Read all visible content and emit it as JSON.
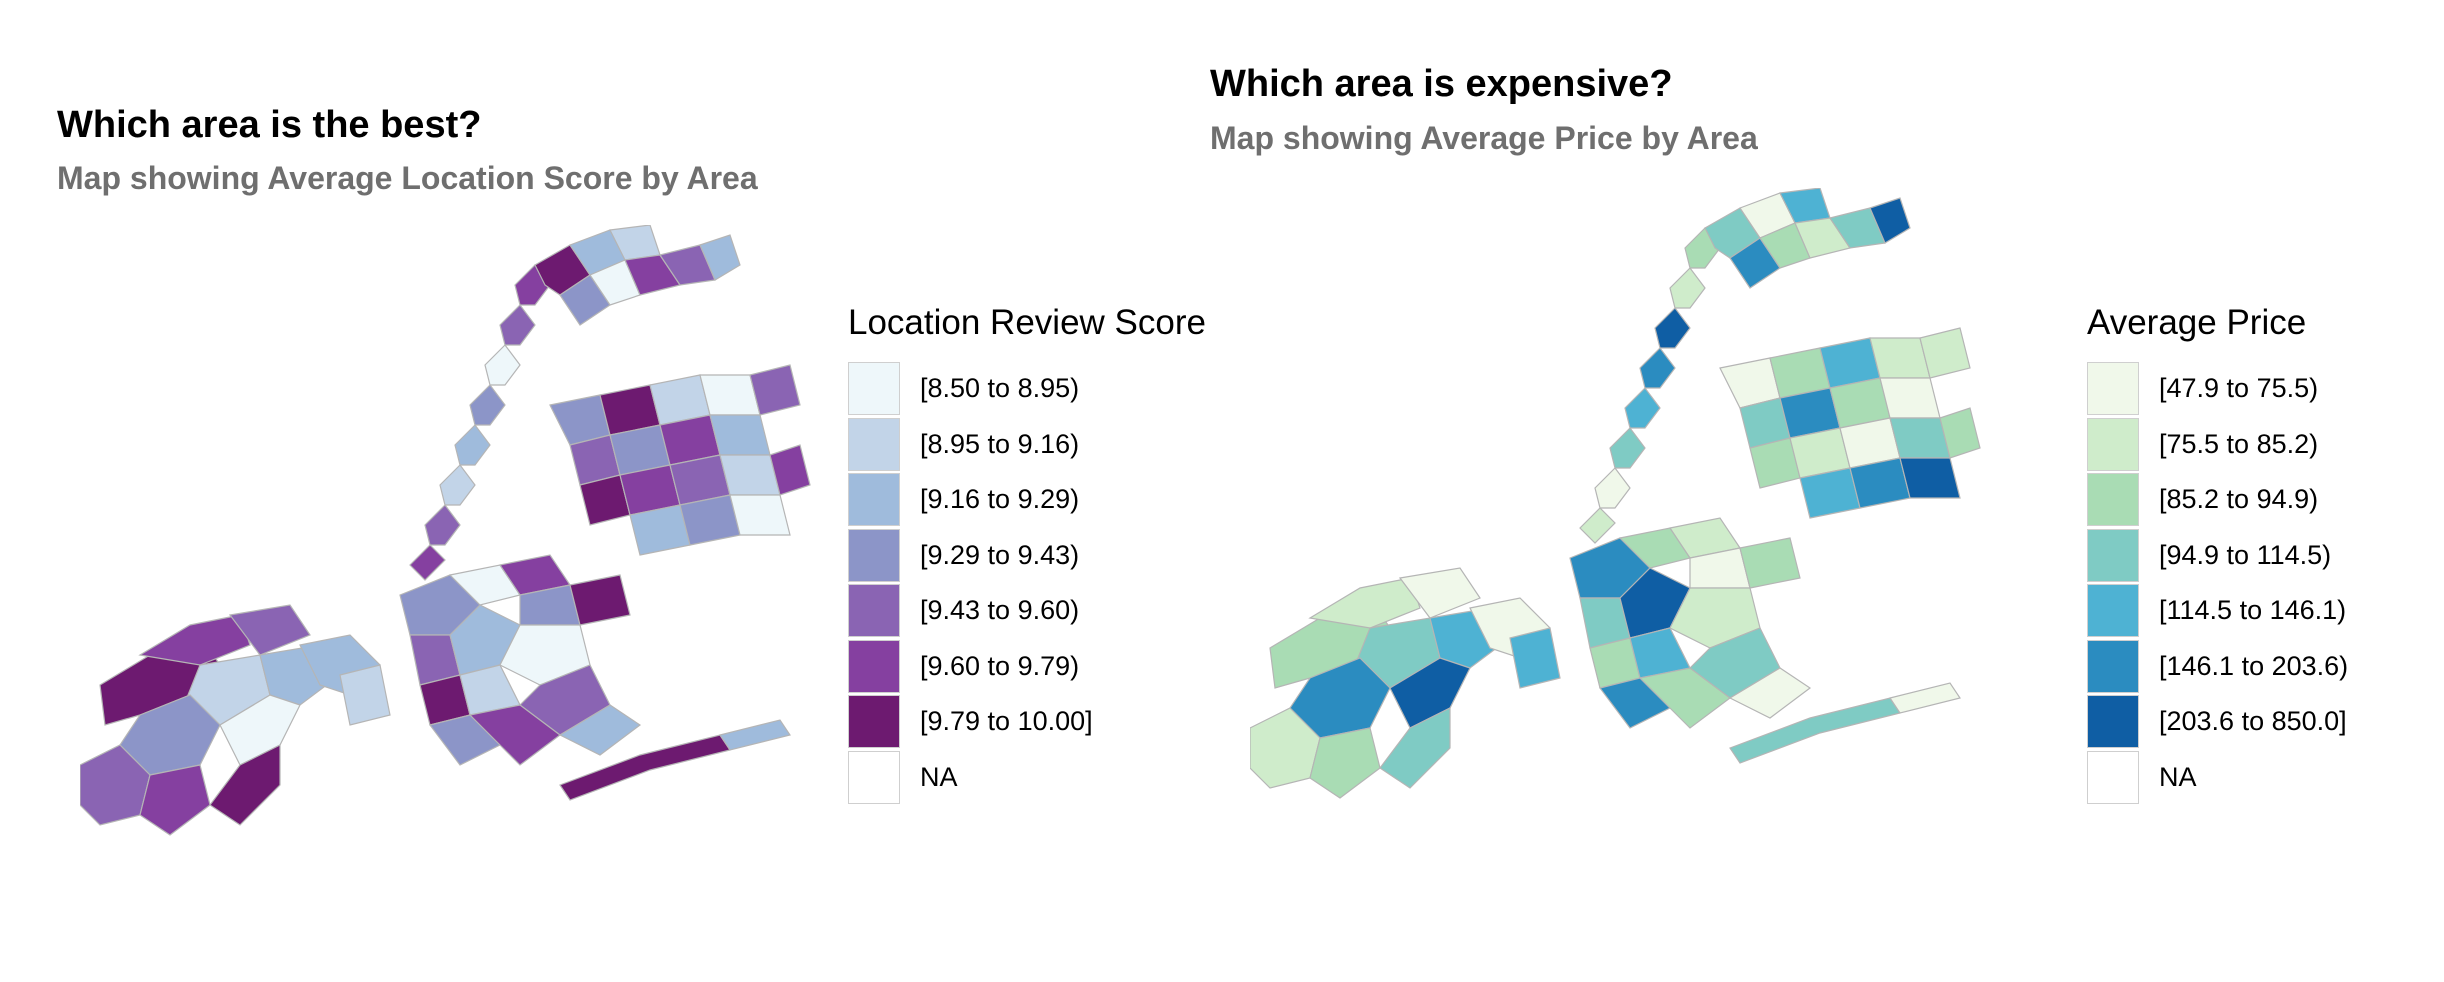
{
  "panels": [
    {
      "title": "Which area is the best?",
      "subtitle": "Map showing Average Location Score by Area",
      "legend_title": "Location Review Score",
      "legend": [
        {
          "label": "[8.50 to 8.95)",
          "color": "#eef7fa"
        },
        {
          "label": "[8.95 to 9.16)",
          "color": "#c2d4e8"
        },
        {
          "label": "[9.16 to 9.29)",
          "color": "#9fbbdc"
        },
        {
          "label": "[9.29 to 9.43)",
          "color": "#8c95c8"
        },
        {
          "label": "[9.43 to 9.60)",
          "color": "#8a64b3"
        },
        {
          "label": "[9.60 to 9.79)",
          "color": "#8540a0"
        },
        {
          "label": "[9.79 to 10.00]",
          "color": "#6d1a70"
        },
        {
          "label": "NA",
          "color": "#ffffff"
        }
      ]
    },
    {
      "title": "Which area is expensive?",
      "subtitle": "Map showing Average Price by Area",
      "legend_title": "Average Price",
      "legend": [
        {
          "label": "[47.9 to 75.5)",
          "color": "#f0f8ea"
        },
        {
          "label": "[75.5 to 85.2)",
          "color": "#cfeccb"
        },
        {
          "label": "[85.2 to 94.9)",
          "color": "#a9dcb4"
        },
        {
          "label": "[94.9 to 114.5)",
          "color": "#7fcbc4"
        },
        {
          "label": "[114.5 to 146.1)",
          "color": "#4eb2d3"
        },
        {
          "label": "[146.1 to 203.6)",
          "color": "#2b8cc0"
        },
        {
          "label": "[203.6 to 850.0]",
          "color": "#0f5ea4"
        },
        {
          "label": "NA",
          "color": "#ffffff"
        }
      ]
    }
  ]
}
